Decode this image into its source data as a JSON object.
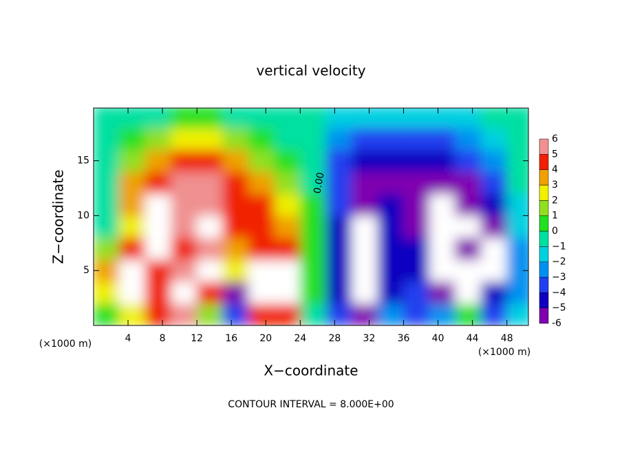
{
  "chart_data": {
    "type": "contour",
    "title": "vertical velocity",
    "xlabel": "X−coordinate",
    "ylabel": "Z−coordinate",
    "x_unit_left": "(×1000 m)",
    "x_unit_right": "(×1000 m)",
    "footer": "CONTOUR INTERVAL = 8.000E+00",
    "contour_label": "0.00",
    "xlim": [
      0,
      50.5
    ],
    "ylim": [
      0,
      19.8
    ],
    "xticks": [
      4,
      8,
      12,
      16,
      20,
      24,
      28,
      32,
      36,
      40,
      44,
      48
    ],
    "yticks": [
      5,
      10,
      15
    ],
    "x_edges": [
      0,
      3,
      6,
      9,
      12,
      15,
      18,
      21,
      24,
      27,
      30,
      33,
      36,
      39,
      42,
      45,
      48,
      51
    ],
    "z_edges": [
      0,
      2,
      4,
      6,
      8,
      10,
      12,
      14,
      16,
      18,
      20
    ],
    "z": [
      [
        1,
        3,
        5,
        6,
        2,
        -3,
        5,
        5,
        0,
        -3,
        -5,
        -2,
        -3,
        -2,
        1,
        -3,
        -1
      ],
      [
        3,
        7,
        5,
        7,
        5,
        -6,
        7,
        7,
        1,
        -4,
        -7,
        -4,
        -3,
        -5,
        -7,
        -4,
        -2
      ],
      [
        4,
        7,
        5,
        6,
        7,
        3,
        7,
        7,
        1,
        -4,
        -7,
        -4,
        -4,
        -7,
        -7,
        -7,
        -2
      ],
      [
        2,
        5,
        7,
        5,
        6,
        4,
        5,
        5,
        1,
        -4,
        -7,
        -4,
        -4,
        -7,
        -6,
        -7,
        -2
      ],
      [
        0,
        3,
        7,
        6,
        7,
        5,
        5,
        4,
        1,
        -4,
        -7,
        -4,
        -5,
        -7,
        -7,
        -5,
        -1
      ],
      [
        0,
        4,
        7,
        6,
        6,
        5,
        5,
        3,
        1,
        -3,
        -6,
        -4,
        -5,
        -7,
        -6,
        -4,
        -1
      ],
      [
        0,
        4,
        5,
        6,
        6,
        5,
        4,
        2,
        0,
        -3,
        -5,
        -5,
        -5,
        -5,
        -5,
        -3,
        0
      ],
      [
        0,
        2,
        4,
        5,
        5,
        4,
        2,
        1,
        0,
        -3,
        -4,
        -4,
        -4,
        -4,
        -3,
        -2,
        0
      ],
      [
        0,
        1,
        2,
        3,
        3,
        2,
        1,
        0,
        0,
        -2,
        -3,
        -3,
        -3,
        -3,
        -2,
        -1,
        0
      ],
      [
        0,
        0,
        0,
        1,
        1,
        0,
        0,
        0,
        0,
        -1,
        -1,
        -1,
        -1,
        -1,
        -1,
        0,
        0
      ]
    ],
    "levels": [
      -6,
      {
        "value": -5,
        "label": "−5"
      },
      {
        "value": -4,
        "label": "−4"
      },
      {
        "value": -3,
        "label": "−3"
      },
      {
        "value": -2,
        "label": "−2"
      },
      {
        "value": -1,
        "label": "−1"
      },
      0,
      1,
      2,
      3,
      4,
      5,
      6
    ],
    "colors": [
      "#8000b0",
      "#1000c0",
      "#2040f0",
      "#0090f0",
      "#00d0e0",
      "#00e0a0",
      "#20e020",
      "#90e020",
      "#f0f000",
      "#f0a000",
      "#f02000",
      "#f09090"
    ],
    "extend_color": "#ffffff"
  }
}
